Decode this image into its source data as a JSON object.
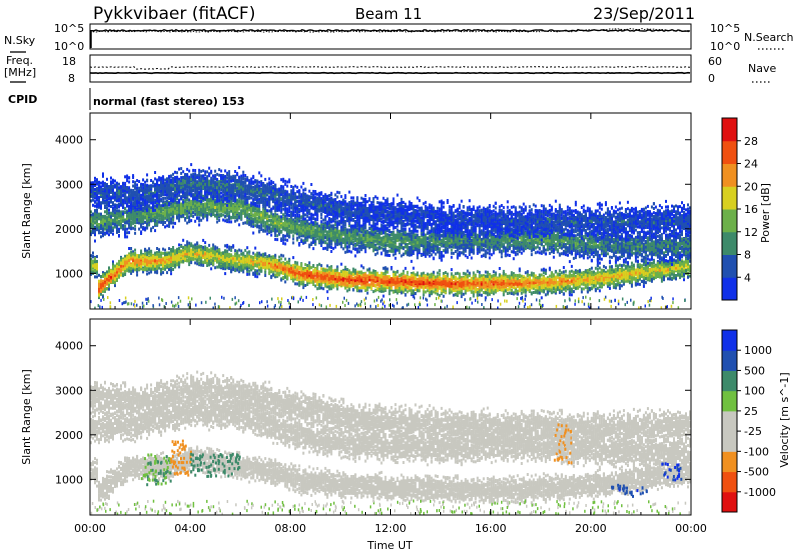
{
  "header": {
    "radar": "Pykkvibaer (fitACF)",
    "beam": "Beam 11",
    "date": "23/Sep/2011"
  },
  "panels": {
    "noise": {
      "left_label": "N.Sky",
      "right_label": "N.Search",
      "y_tick_top": "10^5",
      "y_tick_bottom": "10^0",
      "right_tick_top": "10^5",
      "right_tick_bottom": "10^0"
    },
    "freq": {
      "left_label_line1": "Freq.",
      "left_label_line2": "[MHz]",
      "left_ticks": [
        "18",
        "8"
      ],
      "right_label": "Nave",
      "right_ticks": [
        "60",
        "0"
      ]
    },
    "cpid": {
      "label": "CPID",
      "mode": "normal (fast stereo) 153"
    }
  },
  "colors": {
    "power_scale": [
      "#1030e8",
      "#2050b0",
      "#3d8a6a",
      "#6cb04a",
      "#d8d020",
      "#f09020",
      "#f05010",
      "#e01010"
    ],
    "velocity_scale": [
      "#e01010",
      "#f05010",
      "#f09020",
      "#c8c8c0",
      "#c8c8c0",
      "#70c040",
      "#3d8a6a",
      "#2050b0",
      "#1030e8"
    ],
    "ground_scatter": "#c8c8c0"
  },
  "chart_data": [
    {
      "type": "heatmap",
      "name": "power",
      "ylabel": "Slant Range [km]",
      "y_ticks": [
        "1000",
        "2000",
        "3000",
        "4000"
      ],
      "ylim": [
        200,
        4600
      ],
      "x_ticks": [
        "00:00",
        "04:00",
        "08:00",
        "12:00",
        "16:00",
        "20:00",
        "00:00"
      ],
      "xlim_hours": [
        0,
        24
      ],
      "colorbar": {
        "label": "Power [dB]",
        "ticks": [
          "4",
          "8",
          "12",
          "16",
          "20",
          "24",
          "28"
        ],
        "range": [
          0,
          32
        ]
      },
      "bands": [
        {
          "label": "main",
          "points": [
            [
              0.3,
              700,
              28
            ],
            [
              1.5,
              1300,
              24
            ],
            [
              3.0,
              1300,
              22
            ],
            [
              4.0,
              1500,
              20
            ],
            [
              5.5,
              1350,
              18
            ],
            [
              7.0,
              1250,
              22
            ],
            [
              8.5,
              1000,
              28
            ],
            [
              10.0,
              900,
              28
            ],
            [
              12.0,
              850,
              28
            ],
            [
              14.0,
              800,
              28
            ],
            [
              16.0,
              800,
              26
            ],
            [
              18.0,
              820,
              24
            ],
            [
              20.0,
              900,
              22
            ],
            [
              22.0,
              1050,
              20
            ],
            [
              24.0,
              1200,
              18
            ]
          ]
        },
        {
          "label": "upper",
          "points": [
            [
              0.0,
              2200,
              12
            ],
            [
              2.0,
              2300,
              12
            ],
            [
              4.0,
              2550,
              14
            ],
            [
              6.0,
              2500,
              14
            ],
            [
              7.5,
              2150,
              14
            ],
            [
              9.0,
              1950,
              12
            ],
            [
              12.0,
              1750,
              12
            ],
            [
              15.0,
              1750,
              10
            ],
            [
              18.0,
              1800,
              12
            ],
            [
              21.0,
              1650,
              10
            ],
            [
              24.0,
              1650,
              10
            ]
          ]
        },
        {
          "label": "high",
          "points": [
            [
              0.0,
              2850,
              6
            ],
            [
              2.0,
              2800,
              6
            ],
            [
              4.0,
              3050,
              8
            ],
            [
              6.0,
              2950,
              8
            ],
            [
              8.0,
              2700,
              6
            ],
            [
              10.0,
              2450,
              6
            ],
            [
              14.0,
              2250,
              4
            ],
            [
              18.0,
              2200,
              6
            ],
            [
              22.0,
              2200,
              6
            ],
            [
              24.0,
              2250,
              6
            ]
          ]
        }
      ]
    },
    {
      "type": "heatmap",
      "name": "velocity",
      "ylabel": "Slant Range [km]",
      "y_ticks": [
        "1000",
        "2000",
        "3000",
        "4000"
      ],
      "ylim": [
        200,
        4600
      ],
      "x_ticks": [
        "00:00",
        "04:00",
        "08:00",
        "12:00",
        "16:00",
        "20:00",
        "00:00"
      ],
      "xlabel": "Time UT",
      "xlim_hours": [
        0,
        24
      ],
      "colorbar": {
        "label": "Velocity [m s^-1]",
        "ticks": [
          "1000",
          "500",
          "100",
          "25",
          "-25",
          "-100",
          "-500",
          "-1000"
        ]
      },
      "patches": [
        {
          "t": [
            2.0,
            3.2
          ],
          "r": [
            900,
            1600
          ],
          "velocity": 100
        },
        {
          "t": [
            3.2,
            4.0
          ],
          "r": [
            1100,
            1900
          ],
          "velocity": -300
        },
        {
          "t": [
            4.0,
            6.0
          ],
          "r": [
            1100,
            1600
          ],
          "velocity": 150
        },
        {
          "t": [
            20.8,
            22.2
          ],
          "r": [
            650,
            900
          ],
          "velocity": 800
        },
        {
          "t": [
            22.8,
            23.6
          ],
          "r": [
            1000,
            1400
          ],
          "velocity": 1000
        },
        {
          "t": [
            18.5,
            19.2
          ],
          "r": [
            1400,
            2300
          ],
          "velocity": -100
        }
      ]
    }
  ]
}
